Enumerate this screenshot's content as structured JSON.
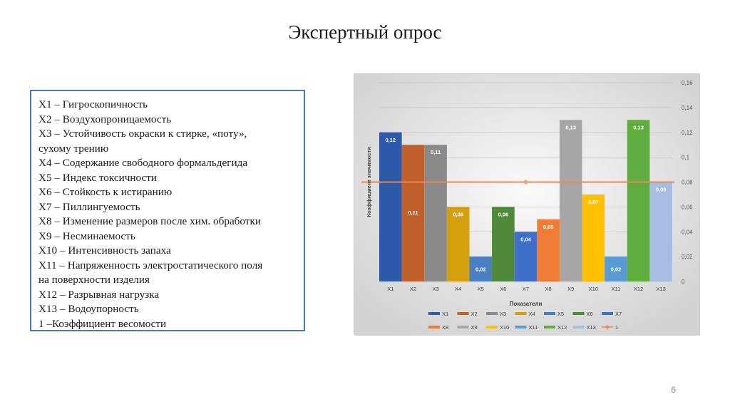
{
  "slide": {
    "title": "Экспертный опрос",
    "page_number": "6"
  },
  "legend_items": [
    "X1 – Гигроскопичность",
    "X2 – Воздухопроницаемость",
    "X3 – Устойчивость окраски к стирке, «поту»,",
    "сухому трению",
    "X4 – Содержание свободного формальдегида",
    "X5 – Индекс токсичности",
    "X6 – Стойкость к истиранию",
    "X7 – Пиллингуемость",
    "X8 – Изменение размеров после хим. обработки",
    "X9 – Несминаемость",
    "X10 – Интенсивность запаха",
    "X11 – Напряженность электростатического поля",
    "на поверхности изделия",
    "X12 – Разрывная нагрузка",
    "X13 – Водоупорность",
    "1 –Коэффициент весомости"
  ],
  "chart_data": {
    "type": "bar",
    "xlabel": "Показатели",
    "ylabel": "Коэффициент значимости",
    "ylim": [
      0,
      0.16
    ],
    "yticks": [
      "0",
      "0,02",
      "0,04",
      "0,06",
      "0,08",
      "0,1",
      "0,12",
      "0,14",
      "0,16"
    ],
    "y_axis_side": "right",
    "grid": true,
    "legend_position": "bottom",
    "categories": [
      "X1",
      "X2",
      "X3",
      "X4",
      "X5",
      "X6",
      "X7",
      "X8",
      "X9",
      "X10",
      "X11",
      "X12",
      "X13"
    ],
    "series": [
      {
        "name": "X1",
        "value": 0.12,
        "label": "0,12",
        "color": "#2e59a8"
      },
      {
        "name": "X2",
        "value": 0.11,
        "label": "0,11",
        "color": "#c0602a"
      },
      {
        "name": "X3",
        "value": 0.11,
        "label": "0,11",
        "color": "#8a8a8a"
      },
      {
        "name": "X4",
        "value": 0.06,
        "label": "0,06",
        "color": "#d4a00c"
      },
      {
        "name": "X5",
        "value": 0.02,
        "label": "0,02",
        "color": "#4a7fc4"
      },
      {
        "name": "X6",
        "value": 0.06,
        "label": "0,06",
        "color": "#4f8a3a"
      },
      {
        "name": "X7",
        "value": 0.04,
        "label": "0,04",
        "color": "#3f6fc9"
      },
      {
        "name": "X8",
        "value": 0.05,
        "label": "0,05",
        "color": "#ef7c35"
      },
      {
        "name": "X9",
        "value": 0.13,
        "label": "0,13",
        "color": "#a6a6a6"
      },
      {
        "name": "X10",
        "value": 0.07,
        "label": "0,07",
        "color": "#ffc000"
      },
      {
        "name": "X11",
        "value": 0.02,
        "label": "0,02",
        "color": "#5b9bd5"
      },
      {
        "name": "X12",
        "value": 0.13,
        "label": "0,13",
        "color": "#5fad3c"
      },
      {
        "name": "X13",
        "value": 0.08,
        "label": "0,08",
        "color": "#a9bde3"
      }
    ],
    "reference_line": {
      "name": "1",
      "value": 0.08,
      "color": "#e8885a"
    },
    "label_dark_color": "#1f1f1f",
    "label_light_color": "#ffffff"
  }
}
